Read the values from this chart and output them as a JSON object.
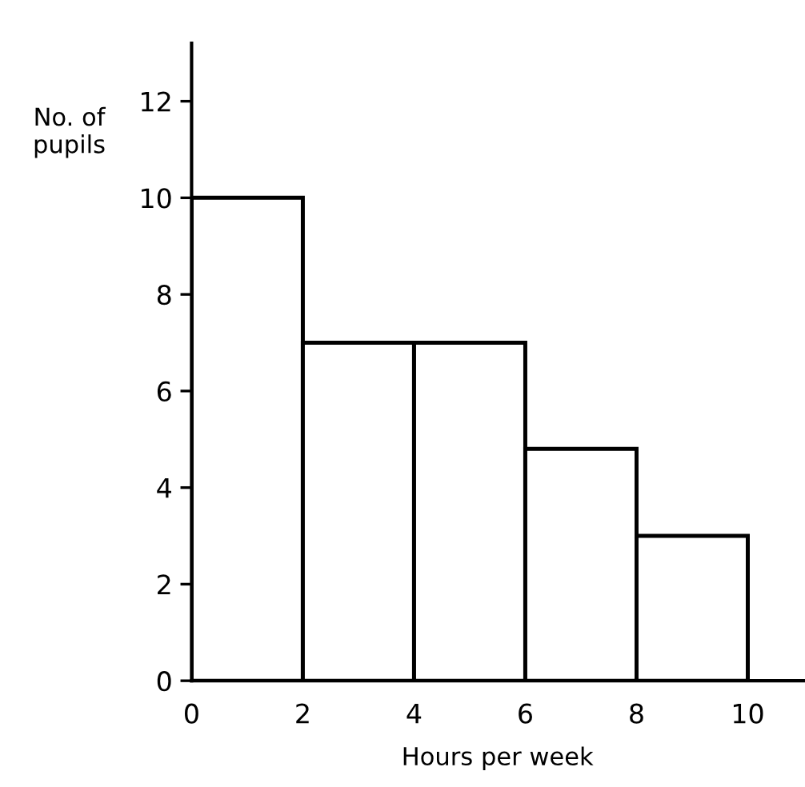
{
  "chart_data": {
    "type": "histogram",
    "xlabel": "Hours per week",
    "ylabel": "No. of\npupils",
    "bins": [
      0,
      2,
      4,
      6,
      8,
      10
    ],
    "values": [
      10,
      7,
      7,
      4.8,
      3
    ],
    "color": "#ffffff",
    "xlim": [
      0,
      11
    ],
    "xticks": [
      0,
      2,
      4,
      6,
      8,
      10
    ],
    "ylim": [
      0,
      13.2
    ],
    "yticks": [
      0,
      2,
      4,
      6,
      8,
      10,
      12
    ],
    "grid": false
  }
}
